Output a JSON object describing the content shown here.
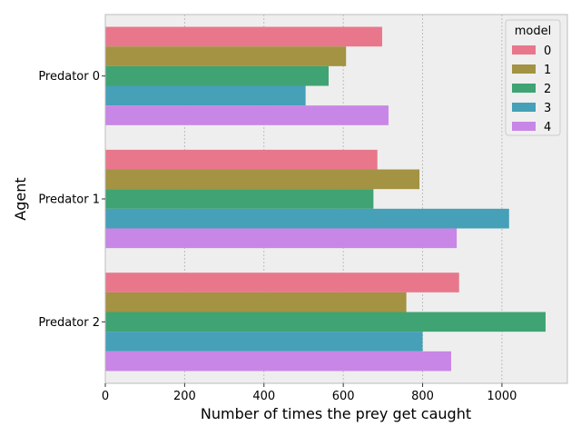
{
  "chart_data": {
    "type": "bar",
    "orientation": "horizontal",
    "title": "",
    "xlabel": "Number of times the prey get caught",
    "ylabel": "Agent",
    "categories": [
      "Predator 0",
      "Predator 1",
      "Predator 2"
    ],
    "xlim": [
      0,
      1165
    ],
    "xticks": [
      0,
      200,
      400,
      600,
      800,
      1000
    ],
    "grid": true,
    "legend": {
      "title": "model",
      "placement": "top-right"
    },
    "series": [
      {
        "name": "0",
        "color": "#e8778c",
        "values": [
          698,
          686,
          892
        ]
      },
      {
        "name": "1",
        "color": "#a39342",
        "values": [
          607,
          792,
          759
        ]
      },
      {
        "name": "2",
        "color": "#3fa373",
        "values": [
          563,
          676,
          1110
        ]
      },
      {
        "name": "3",
        "color": "#45a0b8",
        "values": [
          505,
          1018,
          800
        ]
      },
      {
        "name": "4",
        "color": "#c886e6",
        "values": [
          714,
          886,
          872
        ]
      }
    ]
  }
}
